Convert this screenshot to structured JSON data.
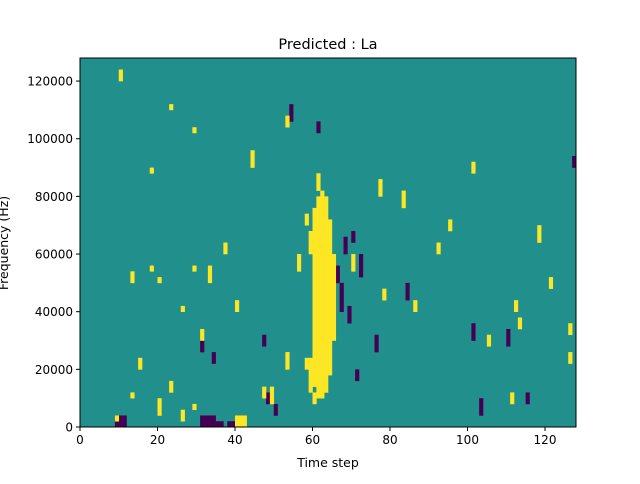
{
  "chart_data": {
    "type": "heatmap",
    "title": "Predicted : La",
    "xlabel": "Time step",
    "ylabel": "Frequency (Hz)",
    "xlim": [
      0,
      128
    ],
    "ylim": [
      0,
      128000
    ],
    "xticks": [
      0,
      20,
      40,
      60,
      80,
      100,
      120
    ],
    "yticks": [
      0,
      20000,
      40000,
      60000,
      80000,
      100000,
      120000
    ],
    "xtick_labels": [
      "0",
      "20",
      "40",
      "60",
      "80",
      "100",
      "120"
    ],
    "ytick_labels": [
      "0",
      "20000",
      "40000",
      "60000",
      "80000",
      "100000",
      "120000"
    ],
    "n_time_steps": 128,
    "n_freq_bins": 64,
    "colors": {
      "low": "#440154",
      "mid": "#21908d",
      "high": "#fde725"
    },
    "columns_high": {
      "9": [
        [
          1,
          2
        ]
      ],
      "10": [
        [
          60,
          62
        ]
      ],
      "13": [
        [
          5,
          6
        ],
        [
          25,
          27
        ]
      ],
      "15": [
        [
          10,
          12
        ]
      ],
      "18": [
        [
          27,
          28
        ],
        [
          44,
          45
        ]
      ],
      "20": [
        [
          2,
          5
        ],
        [
          25,
          26
        ]
      ],
      "23": [
        [
          6,
          8
        ],
        [
          55,
          56
        ]
      ],
      "26": [
        [
          1,
          3
        ],
        [
          20,
          21
        ]
      ],
      "29": [
        [
          3,
          4
        ],
        [
          27,
          28
        ],
        [
          51,
          52
        ]
      ],
      "31": [
        [
          15,
          17
        ]
      ],
      "33": [
        [
          25,
          28
        ]
      ],
      "37": [
        [
          30,
          32
        ]
      ],
      "40": [
        [
          0,
          2
        ],
        [
          20,
          22
        ]
      ],
      "41": [
        [
          0,
          2
        ]
      ],
      "42": [
        [
          0,
          2
        ]
      ],
      "44": [
        [
          45,
          48
        ]
      ],
      "47": [
        [
          5,
          7
        ]
      ],
      "49": [
        [
          4,
          7
        ]
      ],
      "53": [
        [
          10,
          13
        ],
        [
          52,
          54
        ]
      ],
      "56": [
        [
          27,
          30
        ]
      ],
      "58": [
        [
          10,
          12
        ],
        [
          35,
          37
        ]
      ],
      "59": [
        [
          6,
          12
        ],
        [
          30,
          34
        ]
      ],
      "60": [
        [
          4,
          6
        ],
        [
          7,
          38
        ]
      ],
      "61": [
        [
          5,
          40
        ],
        [
          41,
          44
        ]
      ],
      "62": [
        [
          5,
          41
        ]
      ],
      "63": [
        [
          6,
          40
        ]
      ],
      "64": [
        [
          9,
          36
        ]
      ],
      "65": [
        [
          15,
          30
        ]
      ],
      "70": [
        [
          27,
          30
        ]
      ],
      "77": [
        [
          40,
          43
        ]
      ],
      "78": [
        [
          22,
          24
        ]
      ],
      "83": [
        [
          38,
          41
        ]
      ],
      "86": [
        [
          20,
          22
        ]
      ],
      "92": [
        [
          30,
          32
        ]
      ],
      "95": [
        [
          34,
          36
        ]
      ],
      "101": [
        [
          44,
          46
        ]
      ],
      "105": [
        [
          14,
          16
        ]
      ],
      "111": [
        [
          4,
          6
        ]
      ],
      "112": [
        [
          20,
          22
        ]
      ],
      "113": [
        [
          17,
          19
        ]
      ],
      "118": [
        [
          32,
          35
        ]
      ],
      "121": [
        [
          24,
          26
        ]
      ],
      "126": [
        [
          11,
          13
        ],
        [
          16,
          18
        ]
      ]
    },
    "columns_low": {
      "9": [
        [
          0,
          2
        ]
      ],
      "10": [
        [
          0,
          2
        ]
      ],
      "11": [
        [
          0,
          2
        ]
      ],
      "31": [
        [
          0,
          2
        ],
        [
          13,
          15
        ]
      ],
      "32": [
        [
          0,
          2
        ]
      ],
      "33": [
        [
          0,
          2
        ]
      ],
      "34": [
        [
          0,
          2
        ]
      ],
      "35": [
        [
          0,
          1
        ]
      ],
      "36": [
        [
          0,
          1
        ]
      ],
      "38": [
        [
          0,
          1
        ]
      ],
      "39": [
        [
          0,
          1
        ]
      ],
      "34b": [
        [
          11,
          13
        ]
      ],
      "47": [
        [
          14,
          16
        ]
      ],
      "48": [
        [
          4,
          6
        ]
      ],
      "50": [
        [
          2,
          4
        ]
      ],
      "54": [
        [
          53,
          56
        ]
      ],
      "61": [
        [
          51,
          53
        ]
      ],
      "66": [
        [
          25,
          28
        ]
      ],
      "67": [
        [
          20,
          25
        ]
      ],
      "68": [
        [
          30,
          33
        ]
      ],
      "69": [
        [
          18,
          21
        ]
      ],
      "70": [
        [
          32,
          34
        ]
      ],
      "71": [
        [
          8,
          10
        ]
      ],
      "72": [
        [
          26,
          30
        ]
      ],
      "76": [
        [
          13,
          16
        ]
      ],
      "84": [
        [
          22,
          25
        ]
      ],
      "101": [
        [
          15,
          18
        ]
      ],
      "103": [
        [
          2,
          5
        ]
      ],
      "110": [
        [
          14,
          17
        ]
      ],
      "115": [
        [
          4,
          6
        ]
      ],
      "127": [
        [
          45,
          47
        ]
      ]
    }
  }
}
